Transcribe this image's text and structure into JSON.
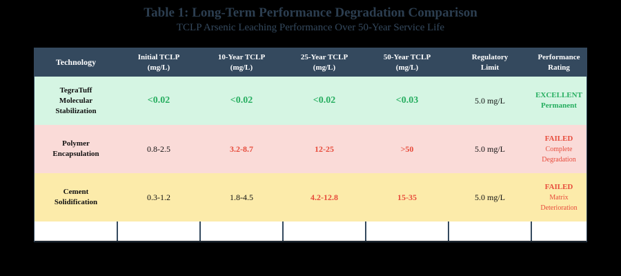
{
  "title": "Table 1: Long-Term Performance Degradation Comparison",
  "subtitle": "TCLP Arsenic Leaching Performance Over 50-Year Service Life",
  "headers": [
    [
      "Technology"
    ],
    [
      "Initial TCLP",
      "(mg/L)"
    ],
    [
      "10-Year TCLP",
      "(mg/L)"
    ],
    [
      "25-Year TCLP",
      "(mg/L)"
    ],
    [
      "50-Year TCLP",
      "(mg/L)"
    ],
    [
      "Regulatory",
      "Limit"
    ],
    [
      "Performance",
      "Rating"
    ]
  ],
  "rows": [
    {
      "technology": [
        "TegraTuff",
        "Molecular",
        "Stabilization"
      ],
      "initial": "<0.02",
      "y10": "<0.02",
      "y25": "<0.02",
      "y50": "<0.03",
      "limit": "5.0 mg/L",
      "rating": "EXCELLENT",
      "rating_detail": [
        "Permanent"
      ],
      "row_color": "#d5f5e3",
      "status_color": "#27ae60"
    },
    {
      "technology": [
        "Polymer",
        "Encapsulation"
      ],
      "initial": "0.8-2.5",
      "y10": "3.2-8.7",
      "y25": "12-25",
      "y50": ">50",
      "limit": "5.0 mg/L",
      "rating": "FAILED",
      "rating_detail": [
        "Complete",
        "Degradation"
      ],
      "row_color": "#fadbd8",
      "status_color": "#e74c3c"
    },
    {
      "technology": [
        "Cement",
        "Solidification"
      ],
      "initial": "0.3-1.2",
      "y10": "1.8-4.5",
      "y25": "4.2-12.8",
      "y50": "15-35",
      "limit": "5.0 mg/L",
      "rating": "FAILED",
      "rating_detail": [
        "Matrix",
        "Deterioration"
      ],
      "row_color": "#fcebaa",
      "status_color": "#e74c3c"
    }
  ],
  "colors": {
    "header_bg": "#34495e",
    "title": "#2c3e50",
    "pass": "#27ae60",
    "fail": "#e74c3c"
  }
}
